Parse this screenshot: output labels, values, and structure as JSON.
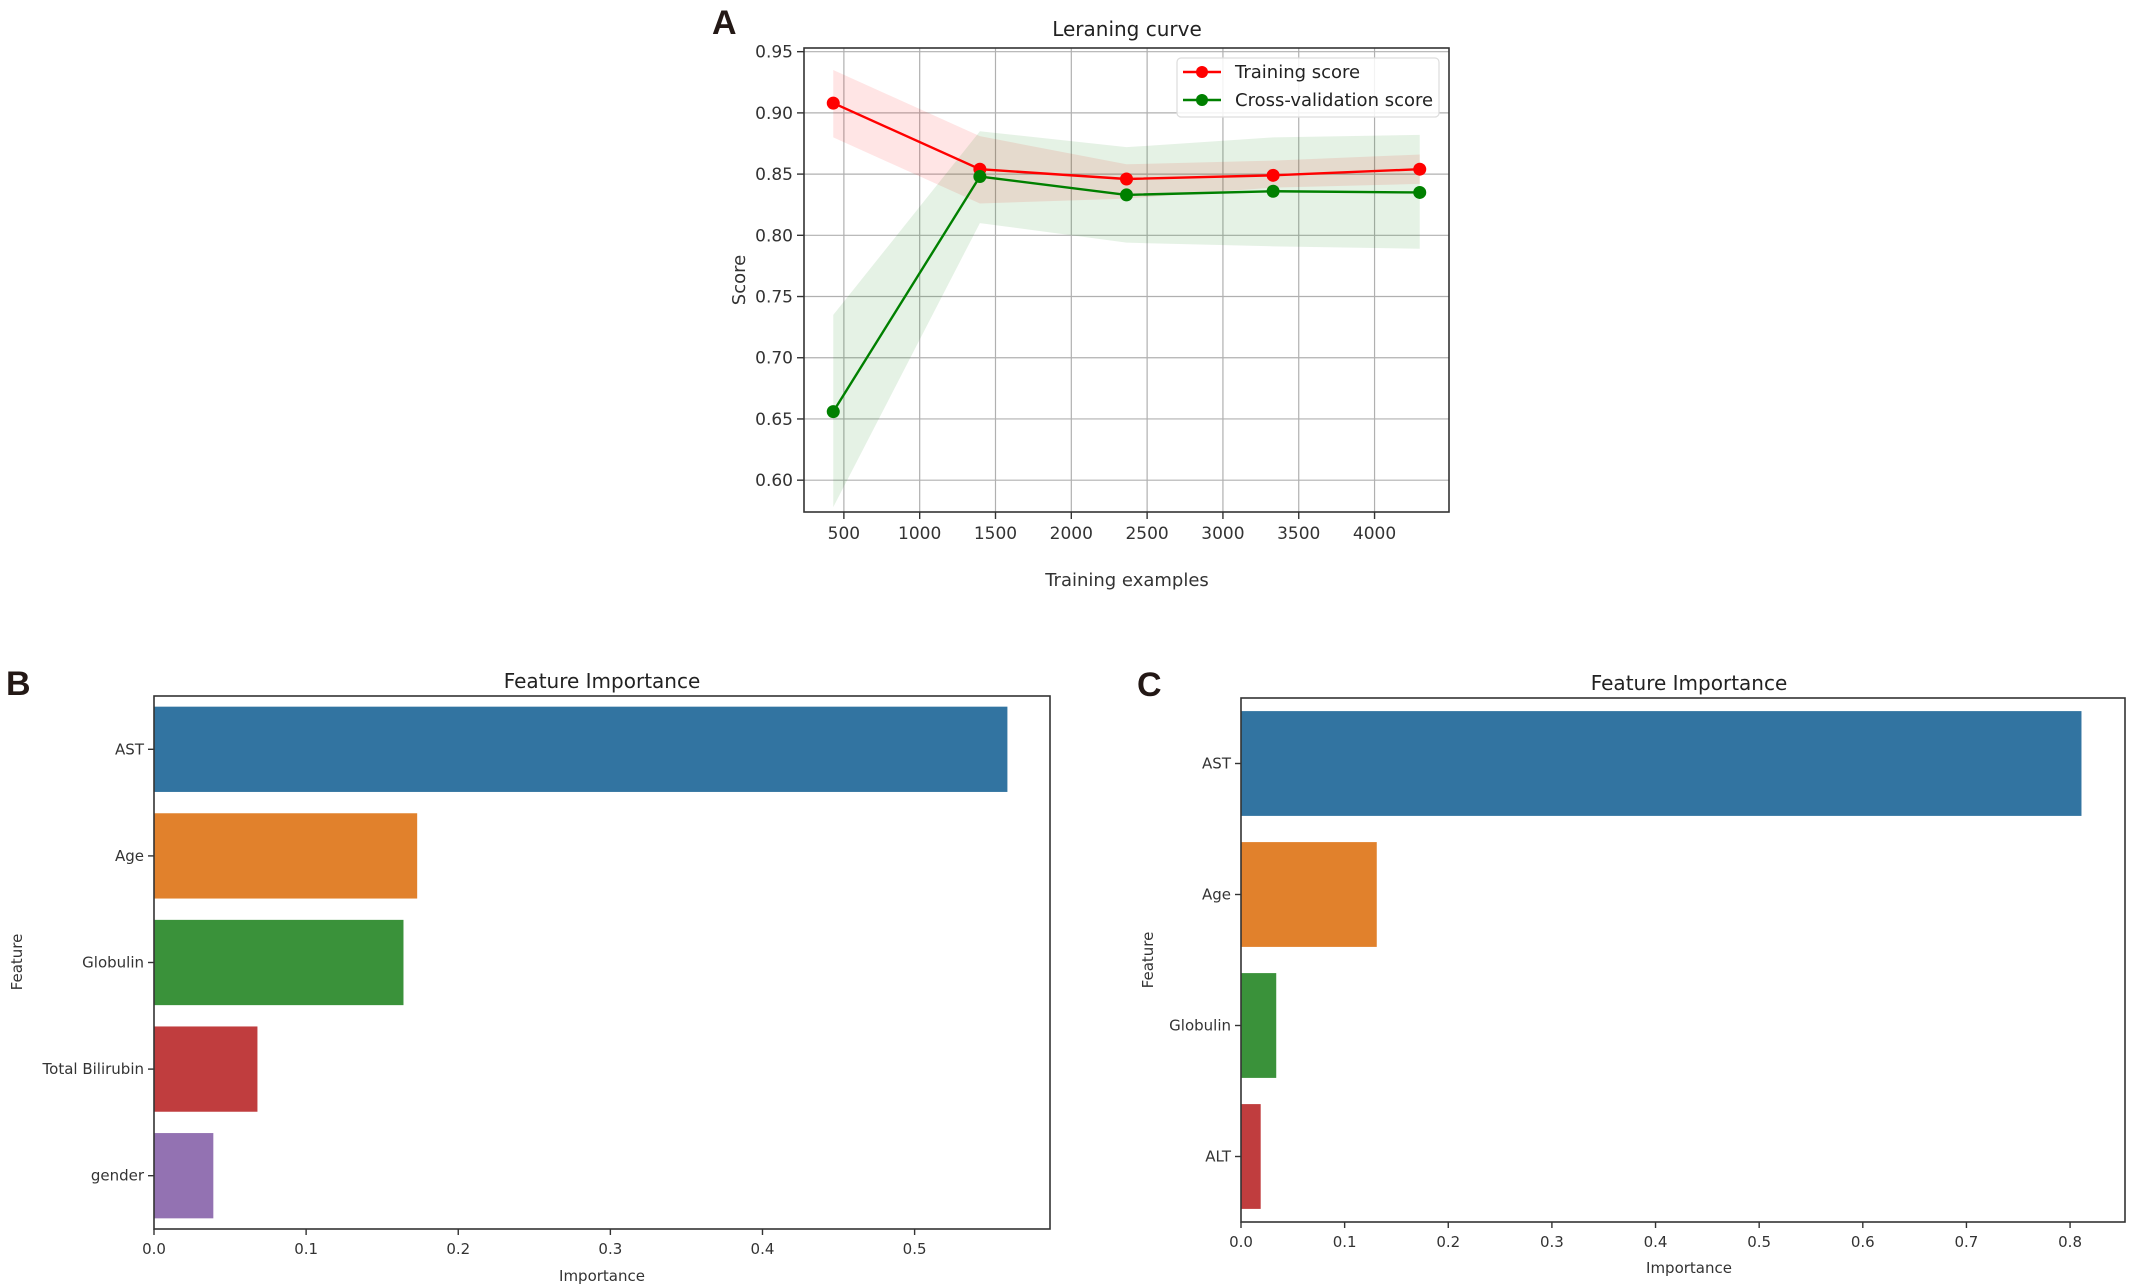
{
  "panels": {
    "A": "A",
    "B": "B",
    "C": "C"
  },
  "chart_data": [
    {
      "id": "A",
      "type": "line",
      "title": "Leraning curve",
      "xlabel": "Training examples",
      "ylabel": "Score",
      "x": [
        430,
        1397,
        2364,
        3331,
        4298
      ],
      "xlim": [
        237,
        4491
      ],
      "ylim": [
        0.574,
        0.953
      ],
      "xticks": [
        500,
        1000,
        1500,
        2000,
        2500,
        3000,
        3500,
        4000
      ],
      "yticks": [
        0.6,
        0.65,
        0.7,
        0.75,
        0.8,
        0.85,
        0.9,
        0.95
      ],
      "ytick_labels": [
        "0.60",
        "0.65",
        "0.70",
        "0.75",
        "0.80",
        "0.85",
        "0.90",
        "0.95"
      ],
      "grid": true,
      "legend_position": "top-right",
      "series": [
        {
          "name": "Training score",
          "color": "#ff0000",
          "band_color": "#ff0000",
          "values": [
            0.908,
            0.854,
            0.846,
            0.849,
            0.854
          ],
          "band_upper": [
            0.935,
            0.881,
            0.858,
            0.861,
            0.866
          ],
          "band_lower": [
            0.88,
            0.826,
            0.83,
            0.839,
            0.842
          ]
        },
        {
          "name": "Cross-validation score",
          "color": "#008000",
          "band_color": "#008000",
          "values": [
            0.656,
            0.848,
            0.833,
            0.836,
            0.835
          ],
          "band_upper": [
            0.735,
            0.885,
            0.872,
            0.88,
            0.882
          ],
          "band_lower": [
            0.578,
            0.81,
            0.794,
            0.791,
            0.789
          ]
        }
      ]
    },
    {
      "id": "B",
      "type": "bar",
      "orientation": "horizontal",
      "title": "Feature Importance",
      "xlabel": "Importance",
      "ylabel": "Feature",
      "categories": [
        "AST",
        "Age",
        "Globulin",
        "Total Bilirubin",
        "gender"
      ],
      "values": [
        0.561,
        0.173,
        0.164,
        0.068,
        0.039
      ],
      "colors": [
        "#3274a1",
        "#e1812c",
        "#3a923a",
        "#c03d3e",
        "#9372b2"
      ],
      "xlim": [
        0,
        0.589
      ],
      "xticks": [
        0.0,
        0.1,
        0.2,
        0.3,
        0.4,
        0.5
      ],
      "xtick_labels": [
        "0.0",
        "0.1",
        "0.2",
        "0.3",
        "0.4",
        "0.5"
      ],
      "grid": false
    },
    {
      "id": "C",
      "type": "bar",
      "orientation": "horizontal",
      "title": "Feature Importance",
      "xlabel": "Importance",
      "ylabel": "Feature",
      "categories": [
        "AST",
        "Age",
        "Globulin",
        "ALT"
      ],
      "values": [
        0.811,
        0.131,
        0.034,
        0.019
      ],
      "colors": [
        "#3274a1",
        "#e1812c",
        "#3a923a",
        "#c03d3e"
      ],
      "xlim": [
        0,
        0.853
      ],
      "xticks": [
        0.0,
        0.1,
        0.2,
        0.3,
        0.4,
        0.5,
        0.6,
        0.7,
        0.8
      ],
      "xtick_labels": [
        "0.0",
        "0.1",
        "0.2",
        "0.3",
        "0.4",
        "0.5",
        "0.6",
        "0.7",
        "0.8"
      ],
      "grid": false
    }
  ]
}
